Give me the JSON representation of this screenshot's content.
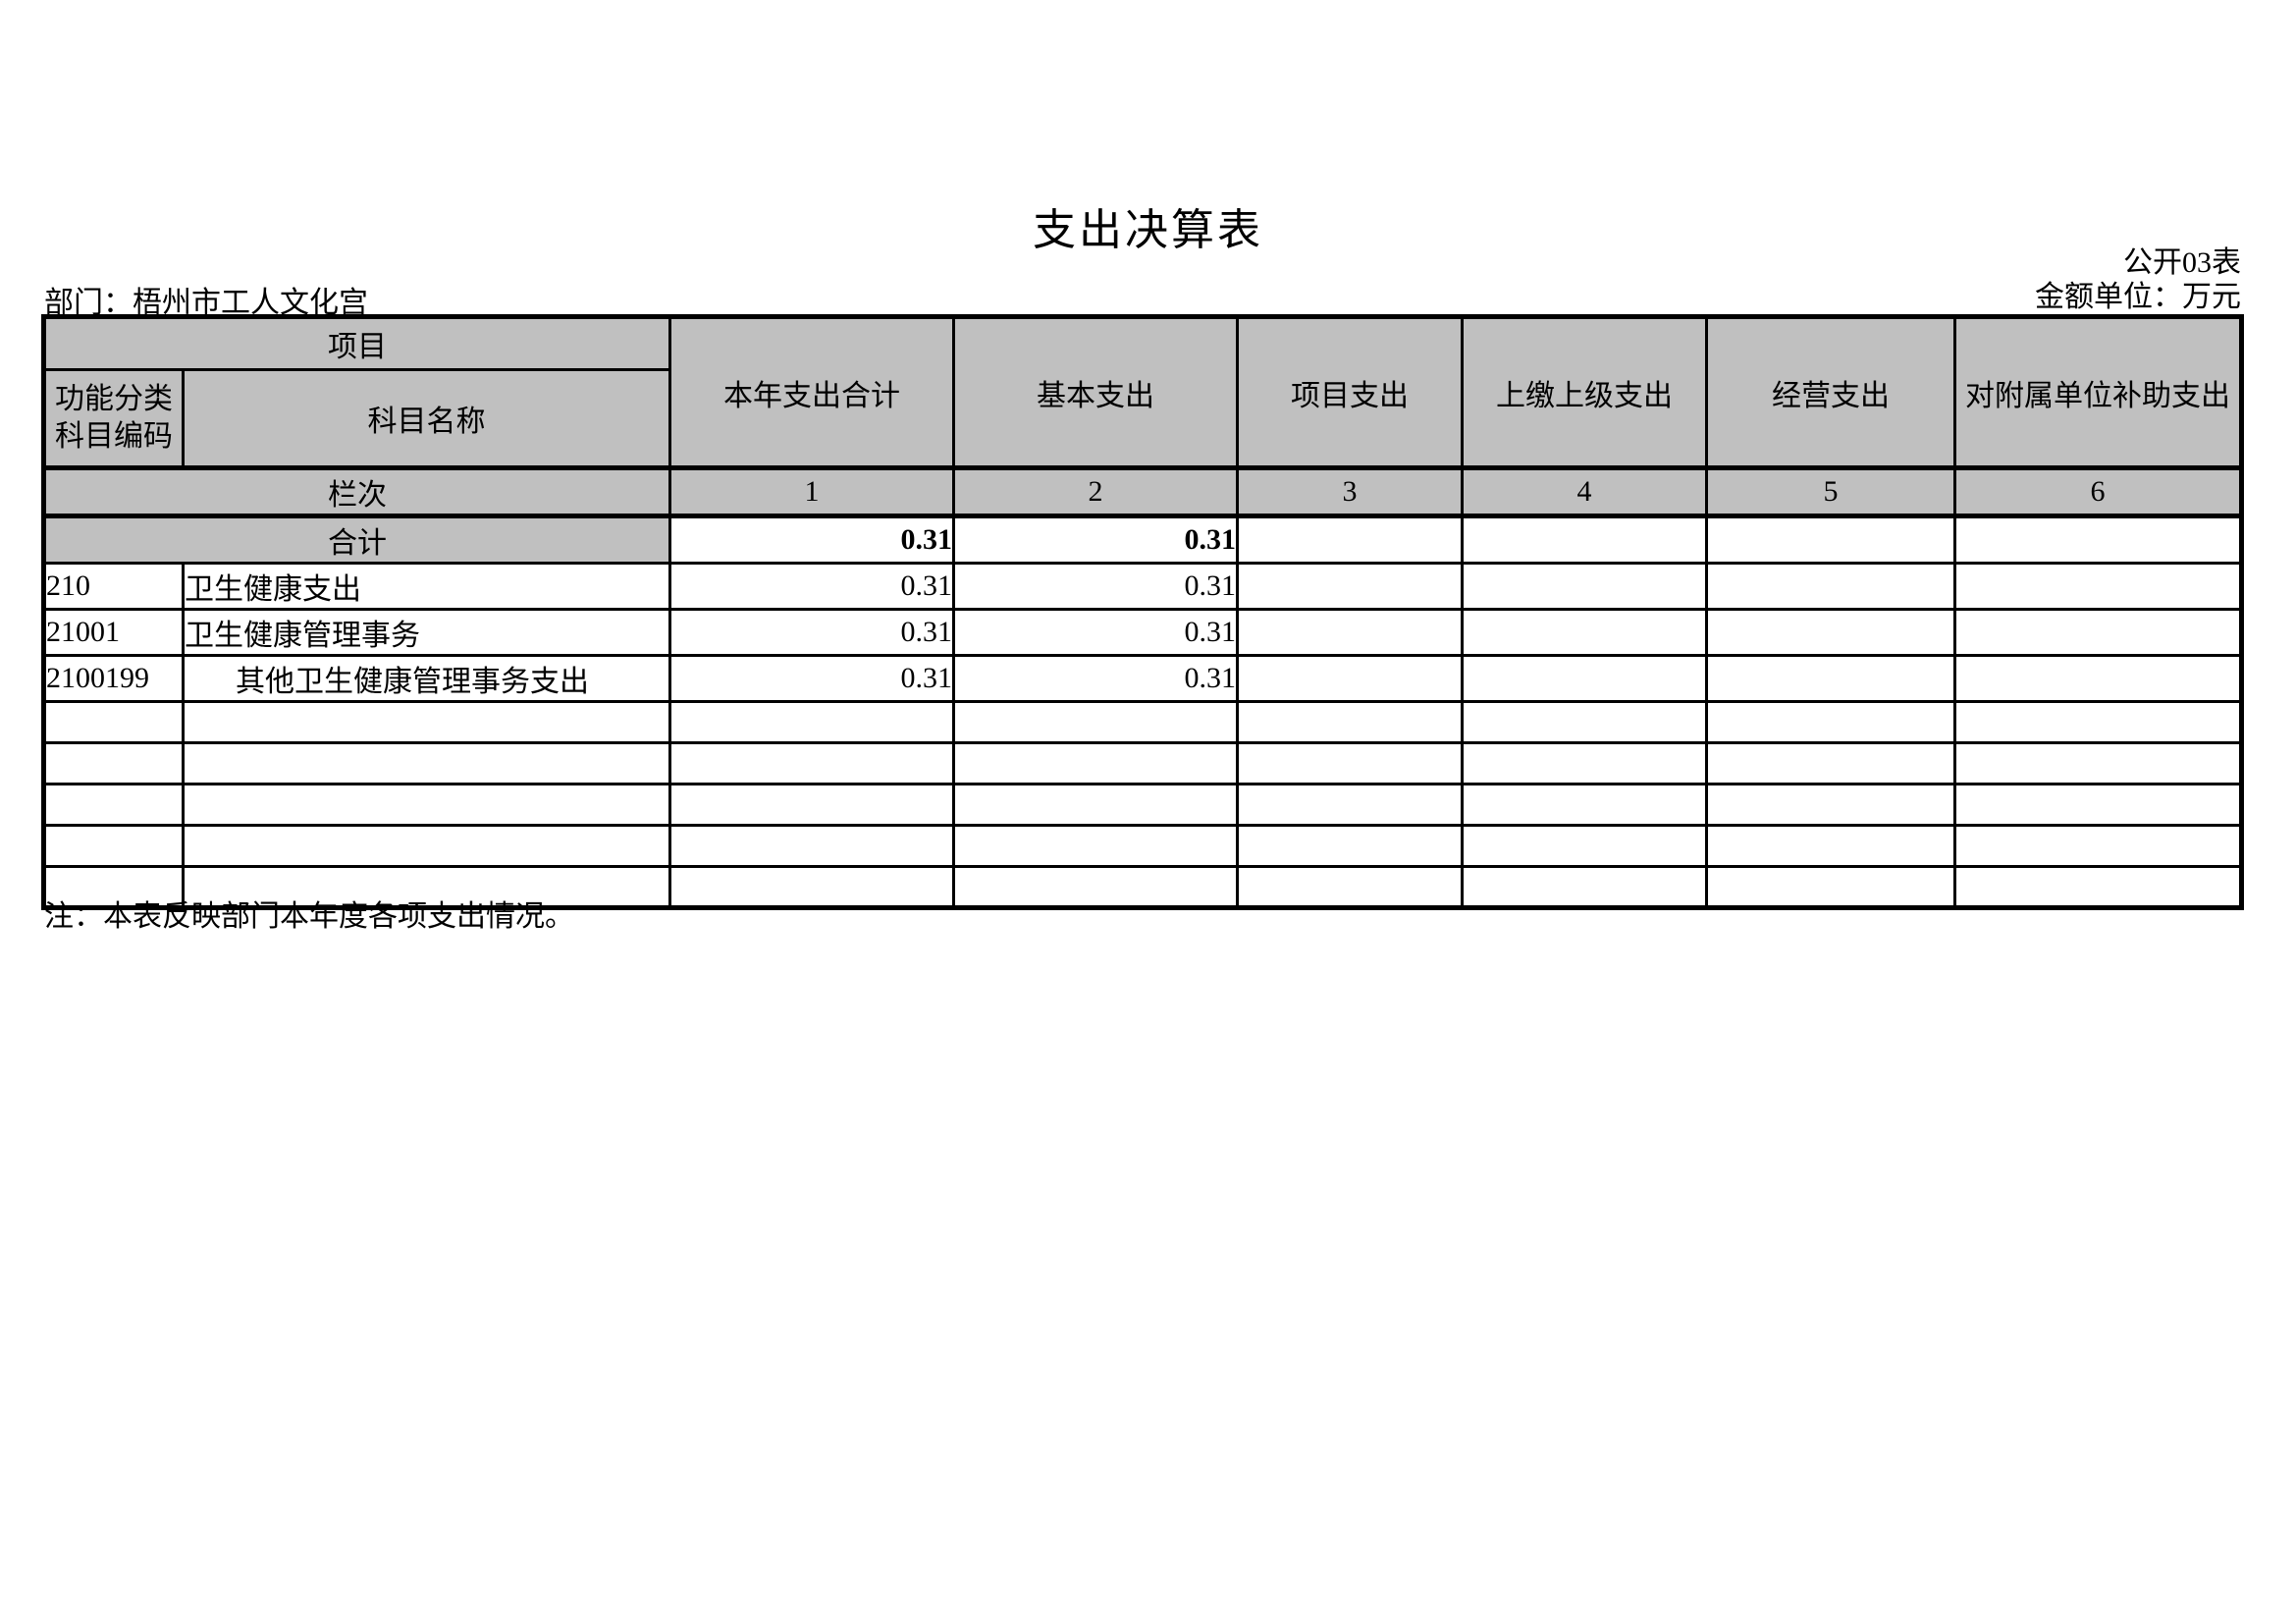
{
  "page": {
    "title": "支出决算表",
    "table_code": "公开03表",
    "unit_label": "金额单位：万元",
    "department": "部门：梧州市工人文化宫",
    "note": "注：本表反映部门本年度各项支出情况。"
  },
  "table": {
    "header": {
      "project": "项目",
      "code_label_line1": "功能分类",
      "code_label_line2": "科目编码",
      "name_label": "科目名称",
      "value_columns": [
        "本年支出合计",
        "基本支出",
        "项目支出",
        "上缴上级支出",
        "经营支出",
        "对附属单位补助支出"
      ],
      "lanci_label": "栏次",
      "column_numbers": [
        "1",
        "2",
        "3",
        "4",
        "5",
        "6"
      ]
    },
    "total_row": {
      "label": "合计",
      "values": [
        "0.31",
        "0.31",
        "",
        "",
        "",
        ""
      ]
    },
    "rows": [
      {
        "code": "210",
        "name": "卫生健康支出",
        "indent": false,
        "values": [
          "0.31",
          "0.31",
          "",
          "",
          "",
          ""
        ]
      },
      {
        "code": "21001",
        "name": "卫生健康管理事务",
        "indent": false,
        "values": [
          "0.31",
          "0.31",
          "",
          "",
          "",
          ""
        ]
      },
      {
        "code": "2100199",
        "name": "其他卫生健康管理事务支出",
        "indent": true,
        "values": [
          "0.31",
          "0.31",
          "",
          "",
          "",
          ""
        ]
      },
      {
        "code": "",
        "name": "",
        "indent": false,
        "values": [
          "",
          "",
          "",
          "",
          "",
          ""
        ]
      },
      {
        "code": "",
        "name": "",
        "indent": false,
        "values": [
          "",
          "",
          "",
          "",
          "",
          ""
        ]
      },
      {
        "code": "",
        "name": "",
        "indent": false,
        "values": [
          "",
          "",
          "",
          "",
          "",
          ""
        ]
      },
      {
        "code": "",
        "name": "",
        "indent": false,
        "values": [
          "",
          "",
          "",
          "",
          "",
          ""
        ]
      },
      {
        "code": "",
        "name": "",
        "indent": false,
        "values": [
          "",
          "",
          "",
          "",
          "",
          ""
        ]
      }
    ]
  },
  "colors": {
    "header_bg": "#c0c0c0",
    "border": "#000000",
    "page_bg": "#ffffff"
  }
}
